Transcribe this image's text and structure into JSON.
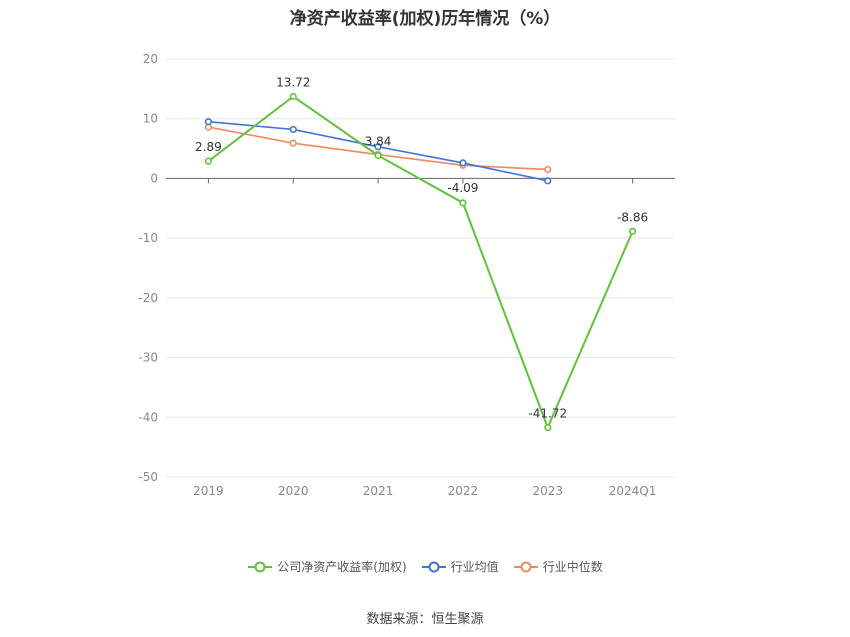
{
  "title": "净资产收益率(加权)历年情况（%）",
  "source": "数据来源：恒生聚源",
  "chart_data": {
    "type": "line",
    "categories": [
      "2019",
      "2020",
      "2021",
      "2022",
      "2023",
      "2024Q1"
    ],
    "ylim": [
      -50,
      20
    ],
    "yticks": [
      20,
      10,
      0,
      -10,
      -20,
      -30,
      -40,
      -50
    ],
    "grid": true,
    "legend_position": "bottom",
    "series": [
      {
        "name": "公司净资产收益率(加权)",
        "color": "#5ec23a",
        "values": [
          2.89,
          13.72,
          3.84,
          -4.09,
          -41.72,
          -8.86
        ],
        "labels": [
          "2.89",
          "13.72",
          "3.84",
          "-4.09",
          "-41.72",
          "-8.86"
        ]
      },
      {
        "name": "行业均值",
        "color": "#3f74d8",
        "values": [
          9.5,
          8.2,
          5.3,
          2.6,
          -0.4,
          null
        ]
      },
      {
        "name": "行业中位数",
        "color": "#f08a5d",
        "values": [
          8.6,
          5.9,
          4.0,
          2.2,
          1.5,
          null
        ]
      }
    ]
  }
}
